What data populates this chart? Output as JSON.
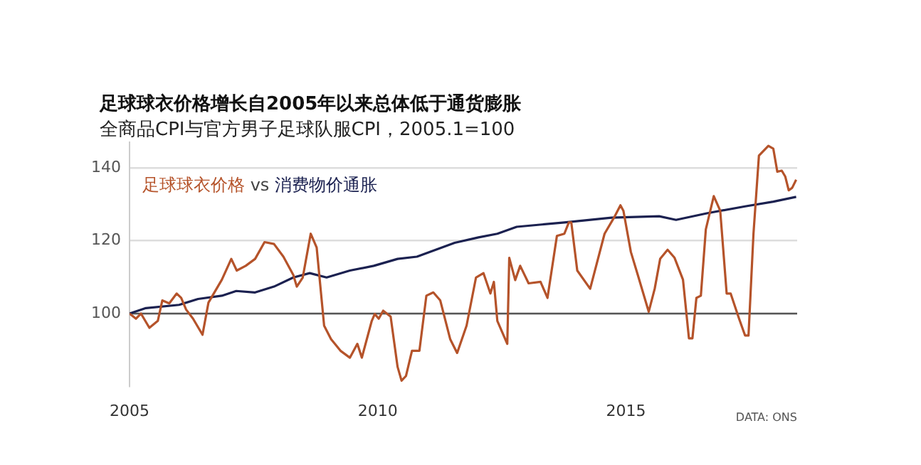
{
  "chart_data": {
    "type": "line",
    "title": "足球球衣价格增长自2005年以来总体低于通货膨胀",
    "subtitle": "全商品CPI与官方男子足球队服CPI，2005.1=100",
    "annotations": [
      "vs",
      "DATA: ONS"
    ],
    "legend": "top left",
    "grid": "y",
    "marker": "none",
    "line_style": "solid",
    "xlim": [
      2005,
      2018.45
    ],
    "xticks": [
      2005,
      2010,
      2015
    ],
    "ylim": [
      80,
      147
    ],
    "yticks": [
      100,
      120,
      140
    ],
    "ref_lines": [
      {
        "axis": "y",
        "value": 100,
        "color": "#555555"
      }
    ],
    "series": [
      {
        "name": "足球球衣价格",
        "color": "#b5532a",
        "x": [
          2005.0,
          2005.13,
          2005.23,
          2005.4,
          2005.57,
          2005.66,
          2005.8,
          2005.95,
          2006.04,
          2006.14,
          2006.28,
          2006.47,
          2006.59,
          2006.86,
          2007.05,
          2007.16,
          2007.34,
          2007.53,
          2007.72,
          2007.91,
          2008.1,
          2008.3,
          2008.37,
          2008.49,
          2008.65,
          2008.77,
          2008.92,
          2009.06,
          2009.25,
          2009.44,
          2009.59,
          2009.68,
          2009.88,
          2009.94,
          2010.02,
          2010.11,
          2010.26,
          2010.4,
          2010.48,
          2010.57,
          2010.69,
          2010.84,
          2010.98,
          2011.12,
          2011.26,
          2011.46,
          2011.6,
          2011.79,
          2011.98,
          2012.13,
          2012.27,
          2012.34,
          2012.41,
          2012.61,
          2012.65,
          2012.77,
          2012.87,
          2013.04,
          2013.28,
          2013.42,
          2013.61,
          2013.76,
          2013.85,
          2013.9,
          2014.02,
          2014.28,
          2014.57,
          2014.76,
          2014.89,
          2014.95,
          2015.1,
          2015.24,
          2015.46,
          2015.58,
          2015.69,
          2015.84,
          2015.98,
          2016.15,
          2016.27,
          2016.34,
          2016.42,
          2016.51,
          2016.61,
          2016.77,
          2016.9,
          2017.03,
          2017.11,
          2017.28,
          2017.4,
          2017.47,
          2017.57,
          2017.68,
          2017.87,
          2017.97,
          2018.05,
          2018.14,
          2018.21,
          2018.28,
          2018.35,
          2018.43
        ],
        "values": [
          100,
          98.6,
          100,
          96.1,
          98,
          103.6,
          102.8,
          105.5,
          104.3,
          101.1,
          98.6,
          94.2,
          103,
          109.3,
          115,
          111.8,
          113.1,
          115,
          119.6,
          119.1,
          115.6,
          110.6,
          107.4,
          109.9,
          121.9,
          118.1,
          96.7,
          93,
          89.8,
          87.9,
          91.7,
          87.9,
          98,
          99.9,
          98.6,
          100.8,
          99.2,
          85.4,
          81.6,
          82.9,
          89.8,
          89.8,
          104.9,
          105.8,
          103.6,
          93,
          89.2,
          96.7,
          109.9,
          111.1,
          105.5,
          108.7,
          98,
          91.7,
          115.3,
          109.2,
          113.1,
          108.3,
          108.7,
          104.3,
          121.3,
          121.9,
          125,
          125,
          111.8,
          106.8,
          121.9,
          126.3,
          129.7,
          128.2,
          116.9,
          110.6,
          100.5,
          106.8,
          115,
          117.5,
          115.3,
          109.3,
          93.2,
          93.2,
          104.3,
          104.9,
          123.1,
          132.2,
          128.2,
          105.5,
          105.5,
          98.6,
          94,
          94,
          121.9,
          143.3,
          146,
          145.2,
          138.9,
          139.2,
          137.6,
          133.8,
          134.5,
          136.7
        ]
      },
      {
        "name": "消费物价通胀",
        "color": "#1b2150",
        "x": [
          2005,
          2005.33,
          2006,
          2006.38,
          2006.86,
          2007.15,
          2007.53,
          2007.91,
          2008.3,
          2008.63,
          2008.97,
          2009.44,
          2009.92,
          2010.4,
          2010.79,
          2011.17,
          2011.55,
          2012.03,
          2012.41,
          2012.8,
          2013.76,
          2014.71,
          2015.67,
          2016.01,
          2016.63,
          2017.4,
          2017.97,
          2018.43
        ],
        "values": [
          100,
          101.5,
          102.4,
          104,
          104.9,
          106.2,
          105.8,
          107.4,
          109.9,
          111.1,
          109.9,
          111.8,
          113.1,
          115,
          115.6,
          117.5,
          119.4,
          120.9,
          121.9,
          123.8,
          125,
          126.3,
          126.7,
          125.7,
          127.5,
          129.4,
          130.7,
          132
        ]
      }
    ]
  }
}
